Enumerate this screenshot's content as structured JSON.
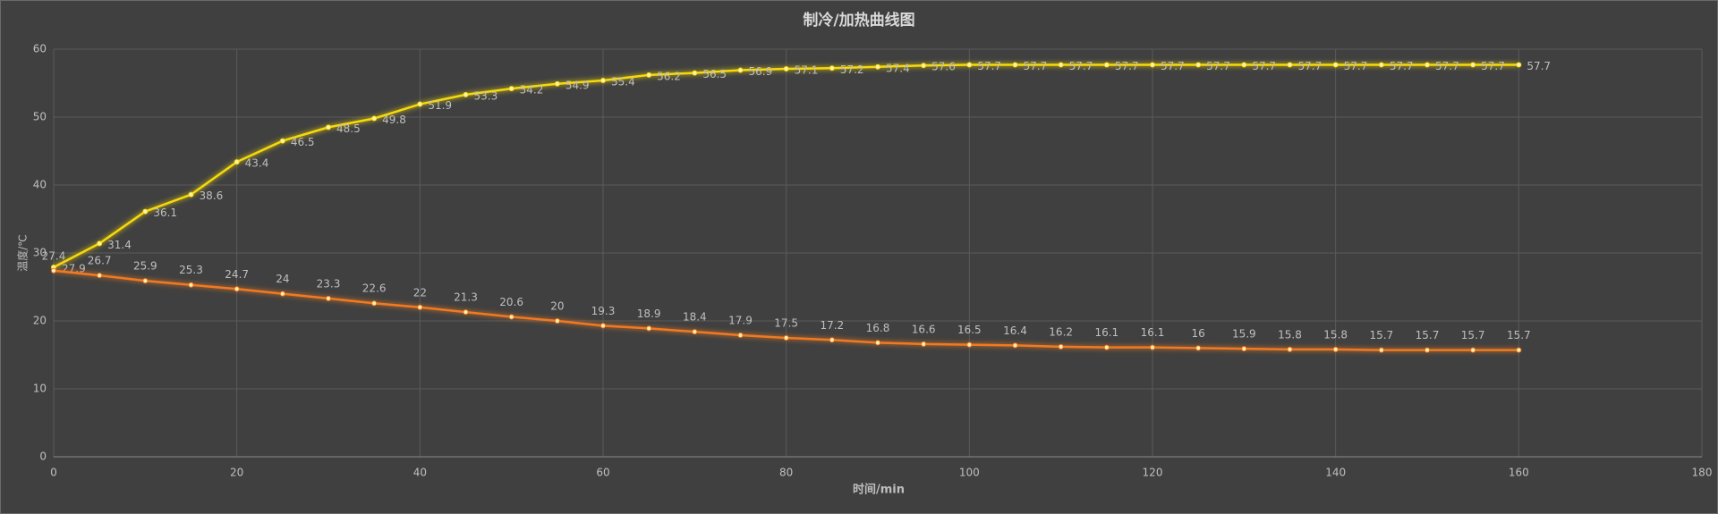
{
  "chart_data": {
    "type": "line",
    "title": "制冷/加热曲线图",
    "x_label": "时间/min",
    "y_label": "温度/℃",
    "x": [
      0,
      5,
      10,
      15,
      20,
      25,
      30,
      35,
      40,
      45,
      50,
      55,
      60,
      65,
      70,
      75,
      80,
      85,
      90,
      95,
      100,
      105,
      110,
      115,
      120,
      125,
      130,
      135,
      140,
      145,
      150,
      155,
      160
    ],
    "series": [
      {
        "color": "#f5d90a",
        "label_position": "right",
        "values": [
          27.9,
          31.4,
          36.1,
          38.6,
          43.4,
          46.5,
          48.5,
          49.8,
          51.9,
          53.3,
          54.2,
          54.9,
          55.4,
          56.2,
          56.5,
          56.9,
          57.1,
          57.2,
          57.4,
          57.6,
          57.7,
          57.7,
          57.7,
          57.7,
          57.7,
          57.7,
          57.7,
          57.7,
          57.7,
          57.7,
          57.7,
          57.7,
          57.7
        ]
      },
      {
        "color": "#f07a22",
        "label_position": "above",
        "values": [
          27.4,
          26.7,
          25.9,
          25.3,
          24.7,
          24,
          23.3,
          22.6,
          22,
          21.3,
          20.6,
          20,
          19.3,
          18.9,
          18.4,
          17.9,
          17.5,
          17.2,
          16.8,
          16.6,
          16.5,
          16.4,
          16.2,
          16.1,
          16.1,
          16,
          15.9,
          15.8,
          15.8,
          15.7,
          15.7,
          15.7,
          15.7
        ]
      }
    ],
    "xlim": [
      0,
      180
    ],
    "xticks": [
      0,
      20,
      40,
      60,
      80,
      100,
      120,
      140,
      160,
      180
    ],
    "ylim": [
      0,
      60
    ],
    "yticks": [
      0,
      10,
      20,
      30,
      40,
      50,
      60
    ],
    "grid": true
  }
}
